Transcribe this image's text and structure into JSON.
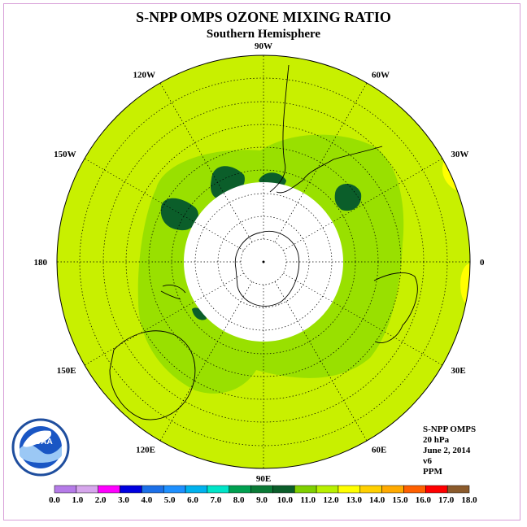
{
  "title": "S-NPP OMPS OZONE MIXING RATIO",
  "subtitle": "Southern Hemisphere",
  "meridian_labels": [
    {
      "text": "0",
      "lon": 0
    },
    {
      "text": "30E",
      "lon": 30
    },
    {
      "text": "60E",
      "lon": 60
    },
    {
      "text": "90E",
      "lon": 90
    },
    {
      "text": "120E",
      "lon": 120
    },
    {
      "text": "150E",
      "lon": 150
    },
    {
      "text": "180",
      "lon": 180
    },
    {
      "text": "150W",
      "lon": -150
    },
    {
      "text": "120W",
      "lon": -120
    },
    {
      "text": "90W",
      "lon": -90
    },
    {
      "text": "60W",
      "lon": -60
    },
    {
      "text": "30W",
      "lon": -30
    }
  ],
  "info": {
    "instrument": "S-NPP OMPS",
    "level": "20 hPa",
    "date": "June 2, 2014",
    "version": "v6",
    "units": "PPM"
  },
  "logo_text": "NOAA",
  "colorbar": {
    "ticks": [
      "0.0",
      "1.0",
      "2.0",
      "3.0",
      "4.0",
      "5.0",
      "6.0",
      "7.0",
      "8.0",
      "9.0",
      "10.0",
      "11.0",
      "12.0",
      "13.0",
      "14.0",
      "15.0",
      "16.0",
      "17.0",
      "18.0"
    ],
    "colors": [
      "#b57be8",
      "#d6a6ec",
      "#ff00ff",
      "#0000e0",
      "#1c70e8",
      "#1e90ff",
      "#00b2ee",
      "#00e5c8",
      "#00a050",
      "#0a7a36",
      "#0b5e2a",
      "#7fd000",
      "#b8f000",
      "#ffff00",
      "#ffd000",
      "#ffaa00",
      "#ff6000",
      "#ff0000",
      "#8b5a2b"
    ]
  },
  "colors": {
    "ring_light": "#c8f000",
    "band_mid": "#99e000",
    "band_dark": "#0b5e2a",
    "yellow_patch": "#ffff00"
  }
}
